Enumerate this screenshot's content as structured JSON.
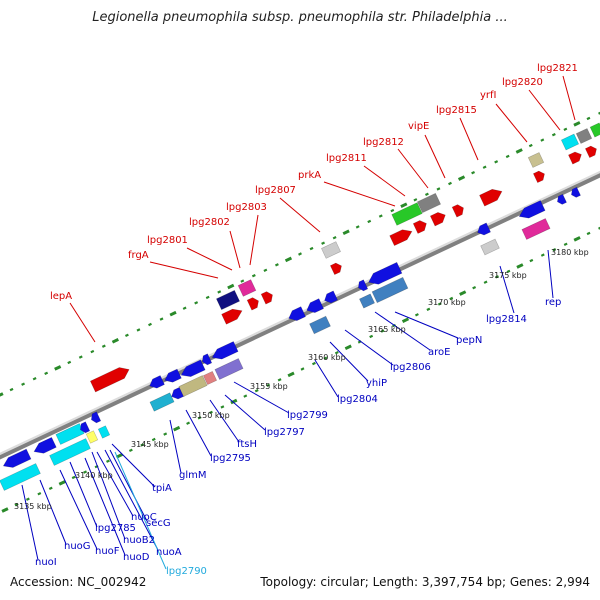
{
  "title": "Legionella pneumophila subsp. pneumophila str. Philadelphia ...",
  "footer": {
    "accession": "Accession: NC_002942",
    "topology": "Topology: circular; Length: 3,397,754 bp; Genes: 2,994"
  },
  "colors": {
    "forward_gene": "#e00000",
    "reverse_gene": "#1010e0",
    "backbone": "#888888",
    "tick": "#2a8a2a",
    "label_top": "#d40000",
    "label_bottom": "#0000c0",
    "label_selected": "#22aadd"
  },
  "scale_labels": [
    "3135 kbp",
    "3140 kbp",
    "3145 kbp",
    "3150 kbp",
    "3155 kbp",
    "3160 kbp",
    "3165 kbp",
    "3170 kbp",
    "3175 kbp",
    "3180 kbp"
  ],
  "top_labels": [
    "lepA",
    "frgA",
    "lpg2801",
    "lpg2802",
    "lpg2803",
    "lpg2807",
    "prkA",
    "lpg2811",
    "lpg2812",
    "vipE",
    "lpg2815",
    "yrfI",
    "lpg2820",
    "lpg2821"
  ],
  "bottom_labels": [
    "nuoI",
    "nuoG",
    "nuoF",
    "lpg2785",
    "nuoD",
    "nuoB2",
    "nuoC",
    "nuoA",
    "secG",
    "lpg2790",
    "tpiA",
    "glmM",
    "lpg2795",
    "ftsH",
    "lpg2797",
    "lpg2799",
    "lpg2804",
    "yhiP",
    "lpg2806",
    "aroE",
    "pepN",
    "lpg2814",
    "rep"
  ],
  "selected_gene": "lpg2790"
}
